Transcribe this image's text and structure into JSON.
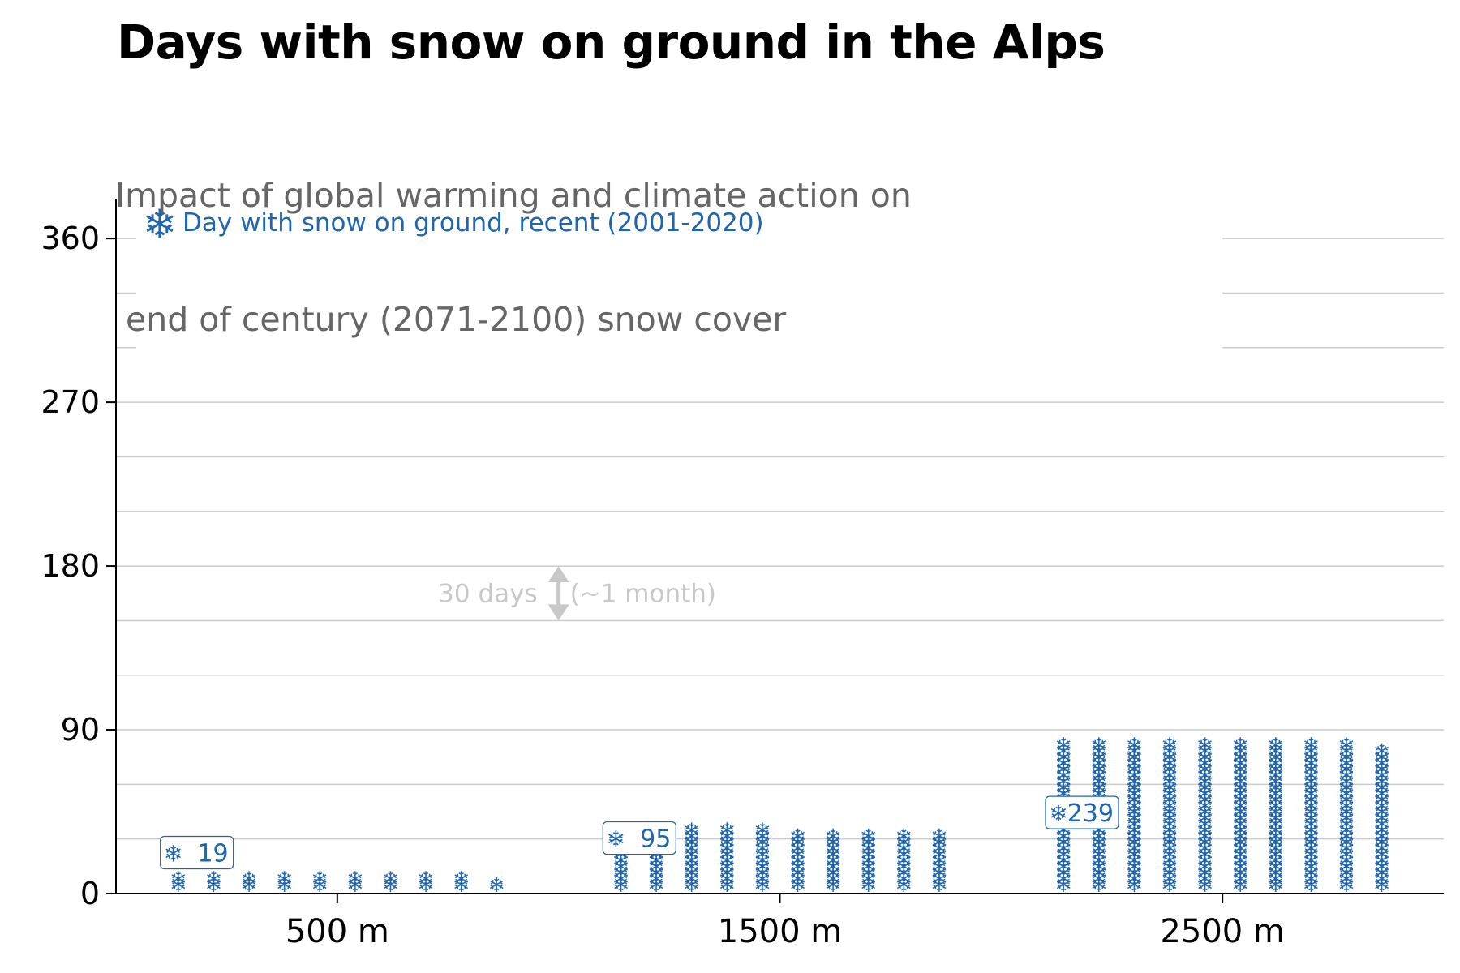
{
  "chart_data": {
    "type": "bar",
    "title": "Days with snow on ground in the Alps",
    "subtitle_lines": [
      "Impact of global warming and climate action on",
      " end of century (2071-2100) snow cover"
    ],
    "categories": [
      "500 m",
      "1500 m",
      "2500 m"
    ],
    "series": [
      {
        "name": "Day with snow on ground, recent (2001-2020)",
        "values": [
          19,
          95,
          239
        ]
      }
    ],
    "value_labels": [
      "19",
      "95",
      "239"
    ],
    "legend_position": "top-left",
    "ylim": [
      0,
      380
    ],
    "yticks": [
      0,
      90,
      180,
      270,
      360
    ],
    "ytick_labels": [
      "0",
      "90",
      "180",
      "270",
      "360"
    ],
    "grid_step": 30,
    "scale_annotation": {
      "text_left": "30 days",
      "text_right": "(~1 month)",
      "value": 30,
      "center_y": 165
    },
    "icon": "snowflake-icon",
    "colors": {
      "snow": "#2166ac",
      "grid": "#cccccc",
      "axis": "#000000",
      "annotation": "#c8c8c8"
    }
  }
}
